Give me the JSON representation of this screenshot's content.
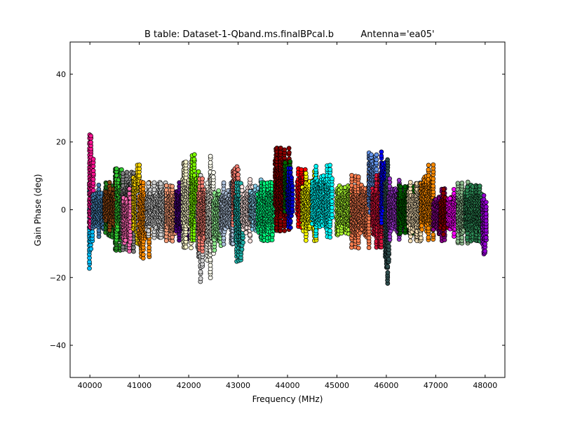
{
  "chart_data": {
    "type": "scatter",
    "title": "B table: Dataset-1-Qband.ms.finalBPcal.b",
    "title_antenna": "Antenna='ea05'",
    "xlabel": "Frequency (MHz)",
    "ylabel": "Gain Phase (deg)",
    "xlim": [
      39600,
      48400
    ],
    "ylim": [
      -49.5,
      49.5
    ],
    "grid": false,
    "x_ticks": [
      {
        "value": 40000,
        "label": "40000"
      },
      {
        "value": 41000,
        "label": "41000"
      },
      {
        "value": 42000,
        "label": "42000"
      },
      {
        "value": 43000,
        "label": "43000"
      },
      {
        "value": 44000,
        "label": "44000"
      },
      {
        "value": 45000,
        "label": "45000"
      },
      {
        "value": 46000,
        "label": "46000"
      },
      {
        "value": 47000,
        "label": "47000"
      },
      {
        "value": 48000,
        "label": "48000"
      }
    ],
    "y_ticks": [
      {
        "value": 40,
        "label": "40"
      },
      {
        "value": 20,
        "label": "20"
      },
      {
        "value": 0,
        "label": "0"
      },
      {
        "value": -20,
        "label": "−20"
      },
      {
        "value": -40,
        "label": "−40"
      }
    ],
    "marker_edge_color": "#000000",
    "series": [
      {
        "color": "#00bfff",
        "x_range": [
          39990,
          40050
        ],
        "y_min": -17,
        "y_max": 8
      },
      {
        "color": "#ff1493",
        "x_range": [
          39995,
          40070
        ],
        "y_min": -5,
        "y_max": 22
      },
      {
        "color": "#4682b4",
        "x_range": [
          40060,
          40320
        ],
        "y_min": -8,
        "y_max": 7
      },
      {
        "color": "#228b22",
        "x_range": [
          40320,
          40650
        ],
        "y_min": -12,
        "y_max": 12
      },
      {
        "color": "#8b4513",
        "x_range": [
          40300,
          40520
        ],
        "y_min": -6,
        "y_max": 8
      },
      {
        "color": "#32cd32",
        "x_range": [
          40540,
          40720
        ],
        "y_min": -9,
        "y_max": 12
      },
      {
        "color": "#808080",
        "x_range": [
          40650,
          41000
        ],
        "y_min": -12,
        "y_max": 11
      },
      {
        "color": "#ff69b4",
        "x_range": [
          40680,
          40820
        ],
        "y_min": -12,
        "y_max": 6
      },
      {
        "color": "#ffd700",
        "x_range": [
          40880,
          41000
        ],
        "y_min": -10,
        "y_max": 13
      },
      {
        "color": "#e6e6fa",
        "x_range": [
          40980,
          41050
        ],
        "y_min": -12,
        "y_max": 12
      },
      {
        "color": "#ff8c00",
        "x_range": [
          41000,
          41200
        ],
        "y_min": -14,
        "y_max": 8
      },
      {
        "color": "#d3d3d3",
        "x_range": [
          41150,
          41550
        ],
        "y_min": -8,
        "y_max": 8
      },
      {
        "color": "#ffa07a",
        "x_range": [
          41550,
          41750
        ],
        "y_min": -9,
        "y_max": 7
      },
      {
        "color": "#4b0082",
        "x_range": [
          41750,
          42000
        ],
        "y_min": -9,
        "y_max": 8
      },
      {
        "color": "#fffacd",
        "x_range": [
          41880,
          42050
        ],
        "y_min": -11,
        "y_max": 14
      },
      {
        "color": "#7cfc00",
        "x_range": [
          42050,
          42200
        ],
        "y_min": -9,
        "y_max": 16
      },
      {
        "color": "#d3d3d3",
        "x_range": [
          42180,
          42280
        ],
        "y_min": -21,
        "y_max": 10
      },
      {
        "color": "#fa8072",
        "x_range": [
          42200,
          42450
        ],
        "y_min": -12,
        "y_max": 9
      },
      {
        "color": "#fffff0",
        "x_range": [
          42380,
          42500
        ],
        "y_min": -20,
        "y_max": 16
      },
      {
        "color": "#90ee90",
        "x_range": [
          42500,
          42650
        ],
        "y_min": -15,
        "y_max": 9
      },
      {
        "color": "#b0c4de",
        "x_range": [
          42650,
          42900
        ],
        "y_min": -10,
        "y_max": 8
      },
      {
        "color": "#fa8072",
        "x_range": [
          42900,
          43000
        ],
        "y_min": -8,
        "y_max": 16
      },
      {
        "color": "#20b2aa",
        "x_range": [
          42950,
          43100
        ],
        "y_min": -15,
        "y_max": 8
      },
      {
        "color": "#ffe4e1",
        "x_range": [
          43080,
          43300
        ],
        "y_min": -9,
        "y_max": 9
      },
      {
        "color": "#87ceeb",
        "x_range": [
          43250,
          43500
        ],
        "y_min": -8,
        "y_max": 9
      },
      {
        "color": "#00ff7f",
        "x_range": [
          43400,
          43750
        ],
        "y_min": -9,
        "y_max": 8
      },
      {
        "color": "#8b0000",
        "x_range": [
          43750,
          44050
        ],
        "y_min": -6,
        "y_max": 18
      },
      {
        "color": "#006400",
        "x_range": [
          43950,
          44050
        ],
        "y_min": -6,
        "y_max": 18
      },
      {
        "color": "#0000cd",
        "x_range": [
          44000,
          44100
        ],
        "y_min": -5,
        "y_max": 12
      },
      {
        "color": "#ff0000",
        "x_range": [
          44200,
          44400
        ],
        "y_min": -5,
        "y_max": 12
      },
      {
        "color": "#ffff00",
        "x_range": [
          44300,
          44600
        ],
        "y_min": -9,
        "y_max": 11
      },
      {
        "color": "#00ffff",
        "x_range": [
          44500,
          44900
        ],
        "y_min": -8,
        "y_max": 13
      },
      {
        "color": "#adff2f",
        "x_range": [
          45000,
          45300
        ],
        "y_min": -10,
        "y_max": 10
      },
      {
        "color": "#ff7f50",
        "x_range": [
          45300,
          45650
        ],
        "y_min": -11,
        "y_max": 10
      },
      {
        "color": "#6495ed",
        "x_range": [
          45650,
          45800
        ],
        "y_min": -5,
        "y_max": 21
      },
      {
        "color": "#dc143c",
        "x_range": [
          45720,
          45980
        ],
        "y_min": -11,
        "y_max": 10
      },
      {
        "color": "#0000ff",
        "x_range": [
          45900,
          46000
        ],
        "y_min": -4,
        "y_max": 17
      },
      {
        "color": "#2f4f4f",
        "x_range": [
          45980,
          46050
        ],
        "y_min": -22,
        "y_max": 15
      },
      {
        "color": "#9932cc",
        "x_range": [
          46050,
          46300
        ],
        "y_min": -9,
        "y_max": 9
      },
      {
        "color": "#006400",
        "x_range": [
          46250,
          46550
        ],
        "y_min": -7,
        "y_max": 7
      },
      {
        "color": "#f5deb3",
        "x_range": [
          46450,
          46700
        ],
        "y_min": -9,
        "y_max": 8
      },
      {
        "color": "#ff8c00",
        "x_range": [
          46700,
          46950
        ],
        "y_min": -9,
        "y_max": 13
      },
      {
        "color": "#8b008b",
        "x_range": [
          46950,
          47200
        ],
        "y_min": -9,
        "y_max": 6
      },
      {
        "color": "#8b0000",
        "x_range": [
          47100,
          47350
        ],
        "y_min": -7,
        "y_max": 6
      },
      {
        "color": "#ff00ff",
        "x_range": [
          47250,
          47450
        ],
        "y_min": -8,
        "y_max": 6
      },
      {
        "color": "#8fbc8f",
        "x_range": [
          47450,
          47650
        ],
        "y_min": -10,
        "y_max": 8
      },
      {
        "color": "#2e8b57",
        "x_range": [
          47600,
          47950
        ],
        "y_min": -9,
        "y_max": 7
      },
      {
        "color": "#ff1493",
        "x_range": [
          47980,
          48020
        ],
        "y_min": -12,
        "y_max": 4
      },
      {
        "color": "#9400d3",
        "x_range": [
          47950,
          48020
        ],
        "y_min": -17,
        "y_max": 8
      }
    ]
  }
}
